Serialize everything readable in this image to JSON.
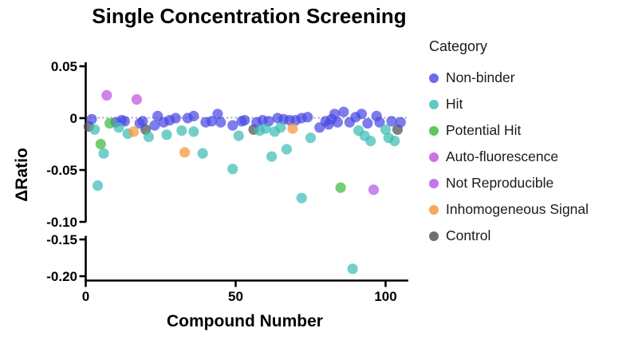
{
  "chart_data": {
    "type": "scatter",
    "title": "Single Concentration Screening",
    "xlabel": "Compound Number",
    "ylabel": "ΔRatio",
    "legend_title": "Category",
    "legend_position": "right",
    "grid": false,
    "zero_line": {
      "value": 0,
      "style": "dotted",
      "color": "#9b9b9b"
    },
    "x_range": [
      0,
      108
    ],
    "x_ticks": [
      {
        "label": "0",
        "value": 0
      },
      {
        "label": "50",
        "value": 50
      },
      {
        "label": "100",
        "value": 100
      }
    ],
    "y_axis_break": {
      "upper_range": [
        -0.1,
        0.055
      ],
      "lower_range": [
        -0.207,
        -0.15
      ]
    },
    "y_ticks_upper": [
      {
        "label": "0.05",
        "value": 0.05
      },
      {
        "label": "0",
        "value": 0
      },
      {
        "label": "-0.05",
        "value": -0.05
      },
      {
        "label": "-0.10",
        "value": -0.1
      }
    ],
    "y_ticks_lower": [
      {
        "label": "-0.15",
        "value": -0.15
      },
      {
        "label": "-0.20",
        "value": -0.2
      }
    ],
    "categories": [
      {
        "name": "Non-binder",
        "color": "#4a4ae6"
      },
      {
        "name": "Hit",
        "color": "#3fbdb5"
      },
      {
        "name": "Potential Hit",
        "color": "#3dbb3d"
      },
      {
        "name": "Auto-fluorescence",
        "color": "#c153dd"
      },
      {
        "name": "Not Reproducible",
        "color": "#b458e8"
      },
      {
        "name": "Inhomogeneous Signal",
        "color": "#f5953c"
      },
      {
        "name": "Control",
        "color": "#4f4f4f"
      }
    ],
    "points": [
      {
        "x": 1,
        "y": -0.008,
        "cat": "Control"
      },
      {
        "x": 20,
        "y": -0.011,
        "cat": "Control"
      },
      {
        "x": 56,
        "y": -0.011,
        "cat": "Control"
      },
      {
        "x": 104,
        "y": -0.011,
        "cat": "Control"
      },
      {
        "x": 2,
        "y": -0.001,
        "cat": "Non-binder"
      },
      {
        "x": 10,
        "y": -0.004,
        "cat": "Non-binder"
      },
      {
        "x": 12,
        "y": -0.002,
        "cat": "Non-binder"
      },
      {
        "x": 13,
        "y": -0.003,
        "cat": "Non-binder"
      },
      {
        "x": 18,
        "y": -0.005,
        "cat": "Non-binder"
      },
      {
        "x": 19,
        "y": -0.003,
        "cat": "Non-binder"
      },
      {
        "x": 23,
        "y": -0.007,
        "cat": "Non-binder"
      },
      {
        "x": 24,
        "y": 0.002,
        "cat": "Non-binder"
      },
      {
        "x": 26,
        "y": -0.004,
        "cat": "Non-binder"
      },
      {
        "x": 28,
        "y": -0.002,
        "cat": "Non-binder"
      },
      {
        "x": 30,
        "y": 0.0,
        "cat": "Non-binder"
      },
      {
        "x": 34,
        "y": 0.0,
        "cat": "Non-binder"
      },
      {
        "x": 36,
        "y": 0.002,
        "cat": "Non-binder"
      },
      {
        "x": 40,
        "y": -0.004,
        "cat": "Non-binder"
      },
      {
        "x": 42,
        "y": -0.003,
        "cat": "Non-binder"
      },
      {
        "x": 44,
        "y": 0.004,
        "cat": "Non-binder"
      },
      {
        "x": 45,
        "y": -0.004,
        "cat": "Non-binder"
      },
      {
        "x": 49,
        "y": -0.007,
        "cat": "Non-binder"
      },
      {
        "x": 52,
        "y": -0.003,
        "cat": "Non-binder"
      },
      {
        "x": 53,
        "y": -0.002,
        "cat": "Non-binder"
      },
      {
        "x": 57,
        "y": -0.004,
        "cat": "Non-binder"
      },
      {
        "x": 59,
        "y": -0.002,
        "cat": "Non-binder"
      },
      {
        "x": 61,
        "y": -0.003,
        "cat": "Non-binder"
      },
      {
        "x": 64,
        "y": 0.0,
        "cat": "Non-binder"
      },
      {
        "x": 66,
        "y": -0.001,
        "cat": "Non-binder"
      },
      {
        "x": 68,
        "y": -0.002,
        "cat": "Non-binder"
      },
      {
        "x": 70,
        "y": -0.002,
        "cat": "Non-binder"
      },
      {
        "x": 72,
        "y": 0.0,
        "cat": "Non-binder"
      },
      {
        "x": 74,
        "y": 0.001,
        "cat": "Non-binder"
      },
      {
        "x": 78,
        "y": -0.009,
        "cat": "Non-binder"
      },
      {
        "x": 80,
        "y": -0.003,
        "cat": "Non-binder"
      },
      {
        "x": 81,
        "y": -0.006,
        "cat": "Non-binder"
      },
      {
        "x": 82,
        "y": -0.001,
        "cat": "Non-binder"
      },
      {
        "x": 83,
        "y": 0.004,
        "cat": "Non-binder"
      },
      {
        "x": 84,
        "y": -0.004,
        "cat": "Non-binder"
      },
      {
        "x": 86,
        "y": 0.006,
        "cat": "Non-binder"
      },
      {
        "x": 88,
        "y": -0.004,
        "cat": "Non-binder"
      },
      {
        "x": 90,
        "y": 0.001,
        "cat": "Non-binder"
      },
      {
        "x": 92,
        "y": 0.004,
        "cat": "Non-binder"
      },
      {
        "x": 94,
        "y": -0.005,
        "cat": "Non-binder"
      },
      {
        "x": 97,
        "y": 0.002,
        "cat": "Non-binder"
      },
      {
        "x": 98,
        "y": -0.004,
        "cat": "Non-binder"
      },
      {
        "x": 102,
        "y": -0.003,
        "cat": "Non-binder"
      },
      {
        "x": 105,
        "y": -0.004,
        "cat": "Non-binder"
      },
      {
        "x": 3,
        "y": -0.011,
        "cat": "Hit"
      },
      {
        "x": 4,
        "y": -0.065,
        "cat": "Hit"
      },
      {
        "x": 6,
        "y": -0.034,
        "cat": "Hit"
      },
      {
        "x": 11,
        "y": -0.009,
        "cat": "Hit"
      },
      {
        "x": 14,
        "y": -0.015,
        "cat": "Hit"
      },
      {
        "x": 21,
        "y": -0.018,
        "cat": "Hit"
      },
      {
        "x": 27,
        "y": -0.016,
        "cat": "Hit"
      },
      {
        "x": 32,
        "y": -0.012,
        "cat": "Hit"
      },
      {
        "x": 36,
        "y": -0.013,
        "cat": "Hit"
      },
      {
        "x": 39,
        "y": -0.034,
        "cat": "Hit"
      },
      {
        "x": 49,
        "y": -0.049,
        "cat": "Hit"
      },
      {
        "x": 51,
        "y": -0.017,
        "cat": "Hit"
      },
      {
        "x": 58,
        "y": -0.012,
        "cat": "Hit"
      },
      {
        "x": 60,
        "y": -0.01,
        "cat": "Hit"
      },
      {
        "x": 62,
        "y": -0.037,
        "cat": "Hit"
      },
      {
        "x": 63,
        "y": -0.013,
        "cat": "Hit"
      },
      {
        "x": 65,
        "y": -0.009,
        "cat": "Hit"
      },
      {
        "x": 67,
        "y": -0.03,
        "cat": "Hit"
      },
      {
        "x": 72,
        "y": -0.077,
        "cat": "Hit"
      },
      {
        "x": 75,
        "y": -0.019,
        "cat": "Hit"
      },
      {
        "x": 89,
        "y": -0.19,
        "cat": "Hit"
      },
      {
        "x": 91,
        "y": -0.012,
        "cat": "Hit"
      },
      {
        "x": 93,
        "y": -0.017,
        "cat": "Hit"
      },
      {
        "x": 95,
        "y": -0.022,
        "cat": "Hit"
      },
      {
        "x": 100,
        "y": -0.011,
        "cat": "Hit"
      },
      {
        "x": 101,
        "y": -0.019,
        "cat": "Hit"
      },
      {
        "x": 103,
        "y": -0.022,
        "cat": "Hit"
      },
      {
        "x": 5,
        "y": -0.025,
        "cat": "Potential Hit"
      },
      {
        "x": 8,
        "y": -0.005,
        "cat": "Potential Hit"
      },
      {
        "x": 85,
        "y": -0.067,
        "cat": "Potential Hit"
      },
      {
        "x": 7,
        "y": 0.022,
        "cat": "Auto-fluorescence"
      },
      {
        "x": 17,
        "y": 0.018,
        "cat": "Auto-fluorescence"
      },
      {
        "x": 96,
        "y": -0.069,
        "cat": "Not Reproducible"
      },
      {
        "x": 16,
        "y": -0.013,
        "cat": "Inhomogeneous Signal"
      },
      {
        "x": 33,
        "y": -0.033,
        "cat": "Inhomogeneous Signal"
      },
      {
        "x": 69,
        "y": -0.01,
        "cat": "Inhomogeneous Signal"
      }
    ]
  }
}
